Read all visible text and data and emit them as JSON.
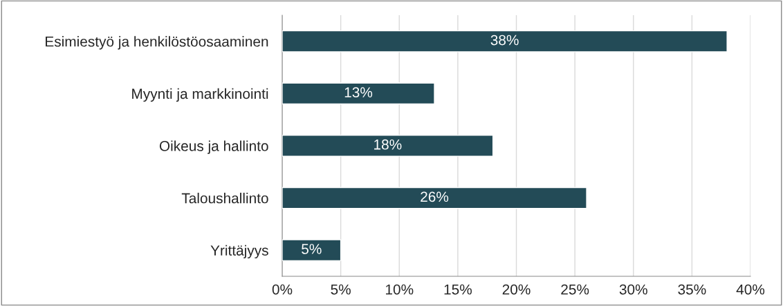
{
  "chart_data": {
    "type": "bar",
    "orientation": "horizontal",
    "categories": [
      "Esimiestyö ja henkilöstöosaaminen",
      "Myynti ja markkinointi",
      "Oikeus ja hallinto",
      "Taloushallinto",
      "Yrittäjyys"
    ],
    "values": [
      38,
      13,
      18,
      26,
      5
    ],
    "value_labels": [
      "38%",
      "13%",
      "18%",
      "26%",
      "5%"
    ],
    "color": "#234b57",
    "xlim": [
      0,
      40
    ],
    "xticks": [
      {
        "value": 0,
        "label": "0%"
      },
      {
        "value": 5,
        "label": "5%"
      },
      {
        "value": 10,
        "label": "10%"
      },
      {
        "value": 15,
        "label": "15%"
      },
      {
        "value": 20,
        "label": "20%"
      },
      {
        "value": 25,
        "label": "25%"
      },
      {
        "value": 30,
        "label": "30%"
      },
      {
        "value": 35,
        "label": "35%"
      },
      {
        "value": 40,
        "label": "40%"
      }
    ],
    "grid": "x",
    "legend": false
  }
}
